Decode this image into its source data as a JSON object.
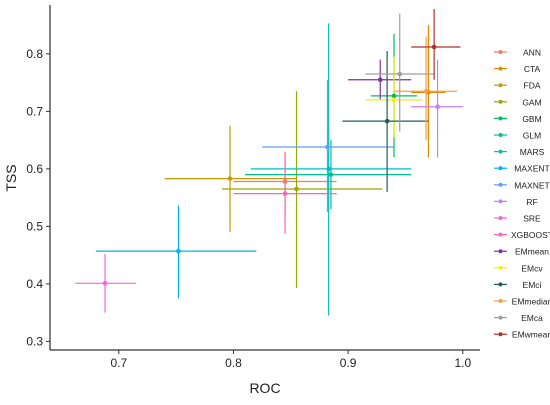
{
  "chart_data": {
    "type": "scatter",
    "title": "",
    "xlabel": "ROC",
    "ylabel": "TSS",
    "xlim": [
      0.64,
      1.015
    ],
    "ylim": [
      0.285,
      0.885
    ],
    "xticks": [
      0.7,
      0.8,
      0.9,
      1.0
    ],
    "yticks": [
      0.3,
      0.4,
      0.5,
      0.6,
      0.7,
      0.8
    ],
    "grid": false,
    "legend": "right",
    "error_bars": true,
    "series": [
      {
        "name": "ANN",
        "color": "#f8766d",
        "x": 0.845,
        "y": 0.578,
        "xerr": [
          0.8,
          0.89
        ],
        "yerr": [
          0.52,
          0.63
        ]
      },
      {
        "name": "CTA",
        "color": "#e38900",
        "x": 0.97,
        "y": 0.733,
        "xerr": [
          0.955,
          0.985
        ],
        "yerr": [
          0.62,
          0.85
        ]
      },
      {
        "name": "FDA",
        "color": "#c49a00",
        "x": 0.797,
        "y": 0.583,
        "xerr": [
          0.74,
          0.855
        ],
        "yerr": [
          0.49,
          0.675
        ]
      },
      {
        "name": "GAM",
        "color": "#99a800",
        "x": 0.855,
        "y": 0.565,
        "xerr": [
          0.79,
          0.93
        ],
        "yerr": [
          0.393,
          0.735
        ]
      },
      {
        "name": "GBM",
        "color": "#00bc56",
        "x": 0.94,
        "y": 0.727,
        "xerr": [
          0.92,
          0.96
        ],
        "yerr": [
          0.62,
          0.835
        ]
      },
      {
        "name": "GLM",
        "color": "#00c08b",
        "x": 0.885,
        "y": 0.59,
        "xerr": [
          0.81,
          0.955
        ],
        "yerr": [
          0.53,
          0.65
        ]
      },
      {
        "name": "MARS",
        "color": "#00bfc4",
        "x": 0.883,
        "y": 0.6,
        "xerr": [
          0.815,
          0.955
        ],
        "yerr": [
          0.345,
          0.853
        ]
      },
      {
        "name": "MAXENT",
        "color": "#00b4f0",
        "x": 0.752,
        "y": 0.457,
        "xerr": [
          0.68,
          0.82
        ],
        "yerr": [
          0.375,
          0.536
        ]
      },
      {
        "name": "MAXNET",
        "color": "#619cff",
        "x": 0.882,
        "y": 0.638,
        "xerr": [
          0.825,
          0.94
        ],
        "yerr": [
          0.525,
          0.755
        ]
      },
      {
        "name": "RF",
        "color": "#c77cff",
        "x": 0.978,
        "y": 0.708,
        "xerr": [
          0.955,
          1.0
        ],
        "yerr": [
          0.62,
          0.79
        ]
      },
      {
        "name": "SRE",
        "color": "#f564e3",
        "x": 0.688,
        "y": 0.401,
        "xerr": [
          0.662,
          0.715
        ],
        "yerr": [
          0.35,
          0.452
        ]
      },
      {
        "name": "XGBOOST",
        "color": "#ff64b0",
        "x": 0.845,
        "y": 0.557,
        "xerr": [
          0.8,
          0.89
        ],
        "yerr": [
          0.487,
          0.623
        ]
      },
      {
        "name": "EMmean",
        "color": "#7b2fa8",
        "x": 0.928,
        "y": 0.755,
        "xerr": [
          0.9,
          0.955
        ],
        "yerr": [
          0.72,
          0.79
        ]
      },
      {
        "name": "EMcv",
        "color": "#f2f200",
        "x": 0.94,
        "y": 0.72,
        "xerr": [
          0.915,
          0.965
        ],
        "yerr": [
          0.655,
          0.795
        ]
      },
      {
        "name": "EMci",
        "color": "#1f5c5c",
        "x": 0.934,
        "y": 0.683,
        "xerr": [
          0.895,
          0.97
        ],
        "yerr": [
          0.56,
          0.805
        ]
      },
      {
        "name": "EMmedian",
        "color": "#f0a050",
        "x": 0.968,
        "y": 0.735,
        "xerr": [
          0.94,
          0.995
        ],
        "yerr": [
          0.65,
          0.83
        ]
      },
      {
        "name": "EMca",
        "color": "#a0a0a0",
        "x": 0.945,
        "y": 0.765,
        "xerr": [
          0.915,
          0.975
        ],
        "yerr": [
          0.665,
          0.87
        ]
      },
      {
        "name": "EMwmean",
        "color": "#b03030",
        "x": 0.975,
        "y": 0.812,
        "xerr": [
          0.955,
          0.998
        ],
        "yerr": [
          0.755,
          0.878
        ]
      }
    ]
  }
}
